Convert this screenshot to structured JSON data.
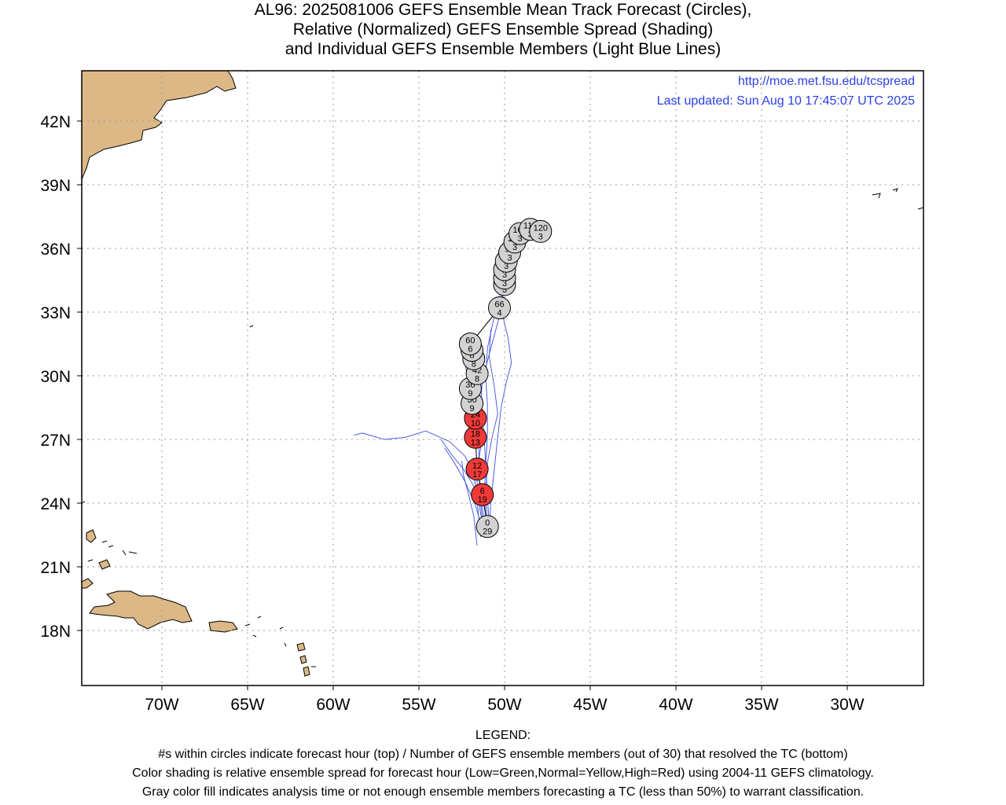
{
  "title": {
    "line1": "AL96: 2025081006 GEFS Ensemble Mean Track Forecast (Circles),",
    "line2": "Relative (Normalized) GEFS Ensemble Spread (Shading)",
    "line3": "and Individual GEFS Ensemble Members (Light Blue Lines)"
  },
  "info": {
    "url": "http://moe.met.fsu.edu/tcspread",
    "updated": "Last updated: Sun Aug 10 17:45:07 UTC 2025"
  },
  "axes": {
    "lon_labels": [
      "70W",
      "65W",
      "60W",
      "55W",
      "50W",
      "45W",
      "40W",
      "35W",
      "30W"
    ],
    "lat_labels": [
      "42N",
      "39N",
      "36N",
      "33N",
      "30N",
      "27N",
      "24N",
      "21N",
      "18N"
    ]
  },
  "legend": {
    "heading": "LEGEND:",
    "line1": "#s within circles indicate forecast hour (top) / Number of GEFS ensemble members (out of 30) that resolved the TC (bottom)",
    "line2": "Color shading is relative ensemble spread for forecast hour (Low=Green,Normal=Yellow,High=Red) using 2004-11 GEFS climatology.",
    "line3": "Gray color fill indicates analysis time or not enough ensemble members forecasting a TC (less than 50%) to warrant classification."
  },
  "colors": {
    "high_spread": "#f03a3a",
    "gray_fill": "#d2d2d2",
    "member_track": "#3a4fe0",
    "land": "#dcb887",
    "info_text": "#2a3fe6"
  },
  "chart_data": {
    "type": "map",
    "projection": "lat-lon",
    "lon_range": [
      -74.7,
      -25.5
    ],
    "lat_range": [
      15.7,
      44.3
    ],
    "grid": true,
    "mean_track": [
      {
        "hour": 0,
        "members": 29,
        "lon": -51.0,
        "lat": 22.9,
        "shade": "gray"
      },
      {
        "hour": 6,
        "members": 19,
        "lon": -51.3,
        "lat": 24.4,
        "shade": "red"
      },
      {
        "hour": 12,
        "members": 17,
        "lon": -51.6,
        "lat": 25.6,
        "shade": "red"
      },
      {
        "hour": 18,
        "members": 13,
        "lon": -51.7,
        "lat": 27.1,
        "shade": "red"
      },
      {
        "hour": 24,
        "members": 10,
        "lon": -51.7,
        "lat": 28.0,
        "shade": "red"
      },
      {
        "hour": 30,
        "members": 9,
        "lon": -51.9,
        "lat": 28.7,
        "shade": "gray"
      },
      {
        "hour": 36,
        "members": 9,
        "lon": -52.0,
        "lat": 29.4,
        "shade": "gray"
      },
      {
        "hour": 42,
        "members": 8,
        "lon": -51.6,
        "lat": 30.1,
        "shade": "gray"
      },
      {
        "hour": 48,
        "members": 8,
        "lon": -51.8,
        "lat": 30.8,
        "shade": "gray"
      },
      {
        "hour": 54,
        "members": 8,
        "lon": -51.9,
        "lat": 31.2,
        "shade": "gray"
      },
      {
        "hour": 60,
        "members": 6,
        "lon": -52.0,
        "lat": 31.5,
        "shade": "gray"
      },
      {
        "hour": 66,
        "members": 4,
        "lon": -50.3,
        "lat": 33.2,
        "shade": "gray"
      },
      {
        "hour": 72,
        "members": 3,
        "lon": -50.0,
        "lat": 34.3,
        "shade": "gray"
      },
      {
        "hour": 78,
        "members": 3,
        "lon": -50.0,
        "lat": 34.6,
        "shade": "gray"
      },
      {
        "hour": 84,
        "members": 3,
        "lon": -50.0,
        "lat": 35.0,
        "shade": "gray"
      },
      {
        "hour": 90,
        "members": 3,
        "lon": -49.9,
        "lat": 35.4,
        "shade": "gray"
      },
      {
        "hour": 96,
        "members": 3,
        "lon": -49.7,
        "lat": 35.8,
        "shade": "gray"
      },
      {
        "hour": 102,
        "members": 3,
        "lon": -49.4,
        "lat": 36.3,
        "shade": "gray"
      },
      {
        "hour": 108,
        "members": 3,
        "lon": -49.1,
        "lat": 36.7,
        "shade": "gray"
      },
      {
        "hour": 114,
        "members": 3,
        "lon": -48.5,
        "lat": 36.9,
        "shade": "gray"
      },
      {
        "hour": 120,
        "members": 3,
        "lon": -47.9,
        "lat": 36.8,
        "shade": "gray"
      }
    ],
    "member_tracks": [
      [
        [
          -51.2,
          22.6
        ],
        [
          -51.5,
          24.0
        ],
        [
          -51.8,
          25.3
        ],
        [
          -52.3,
          26.2
        ],
        [
          -53.2,
          26.9
        ],
        [
          -54.6,
          27.4
        ],
        [
          -55.8,
          27.1
        ],
        [
          -57.0,
          27.0
        ],
        [
          -58.3,
          27.3
        ],
        [
          -58.8,
          27.2
        ]
      ],
      [
        [
          -51.3,
          22.8
        ],
        [
          -51.7,
          23.9
        ],
        [
          -52.3,
          25.0
        ],
        [
          -53.0,
          26.0
        ],
        [
          -53.5,
          26.6
        ]
      ],
      [
        [
          -51.6,
          22.0
        ],
        [
          -51.8,
          23.4
        ],
        [
          -52.1,
          24.4
        ],
        [
          -52.4,
          25.3
        ],
        [
          -52.5,
          26.0
        ]
      ],
      [
        [
          -51.2,
          22.5
        ],
        [
          -51.4,
          24.0
        ],
        [
          -51.5,
          25.5
        ],
        [
          -51.5,
          27.0
        ],
        [
          -51.7,
          28.3
        ],
        [
          -52.0,
          29.4
        ],
        [
          -52.3,
          30.5
        ],
        [
          -52.6,
          31.8
        ]
      ],
      [
        [
          -51.0,
          22.8
        ],
        [
          -51.2,
          24.2
        ],
        [
          -51.1,
          25.7
        ],
        [
          -51.0,
          27.2
        ],
        [
          -51.0,
          28.6
        ],
        [
          -51.1,
          30.0
        ],
        [
          -51.0,
          31.3
        ],
        [
          -50.6,
          32.8
        ],
        [
          -50.2,
          34.0
        ],
        [
          -49.9,
          35.2
        ],
        [
          -49.4,
          36.2
        ],
        [
          -48.8,
          36.8
        ],
        [
          -48.2,
          37.0
        ]
      ],
      [
        [
          -50.9,
          22.8
        ],
        [
          -50.8,
          24.1
        ],
        [
          -50.6,
          25.6
        ],
        [
          -50.4,
          27.1
        ],
        [
          -50.2,
          28.5
        ],
        [
          -49.9,
          29.7
        ],
        [
          -49.6,
          30.6
        ],
        [
          -49.8,
          31.8
        ],
        [
          -50.1,
          32.8
        ],
        [
          -50.4,
          33.7
        ]
      ],
      [
        [
          -50.9,
          23.0
        ],
        [
          -51.0,
          24.3
        ],
        [
          -51.1,
          25.8
        ],
        [
          -51.2,
          27.3
        ],
        [
          -51.4,
          28.6
        ],
        [
          -51.3,
          29.8
        ],
        [
          -50.9,
          31.0
        ],
        [
          -50.5,
          32.2
        ],
        [
          -50.1,
          33.4
        ],
        [
          -50.1,
          34.6
        ],
        [
          -49.6,
          35.6
        ],
        [
          -49.0,
          36.5
        ],
        [
          -48.6,
          36.8
        ]
      ],
      [
        [
          -51.0,
          22.9
        ],
        [
          -51.1,
          24.4
        ],
        [
          -51.0,
          25.9
        ],
        [
          -50.7,
          27.2
        ],
        [
          -50.4,
          28.2
        ],
        [
          -50.6,
          29.5
        ],
        [
          -50.9,
          30.9
        ],
        [
          -50.8,
          32.2
        ]
      ],
      [
        [
          -51.4,
          22.4
        ],
        [
          -51.6,
          24.1
        ],
        [
          -51.6,
          25.4
        ],
        [
          -51.4,
          26.6
        ],
        [
          -51.2,
          27.4
        ]
      ],
      [
        [
          -51.1,
          22.6
        ],
        [
          -51.3,
          23.8
        ],
        [
          -51.8,
          24.8
        ],
        [
          -52.4,
          25.6
        ],
        [
          -53.1,
          26.3
        ],
        [
          -53.7,
          27.0
        ]
      ]
    ]
  }
}
